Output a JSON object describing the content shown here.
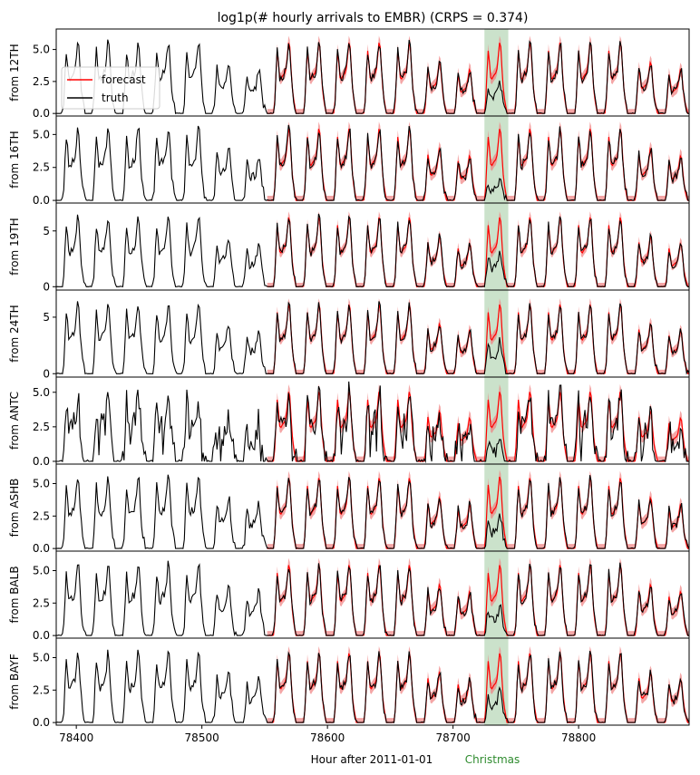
{
  "chart_data": {
    "type": "line",
    "title": "log1p(# hourly arrivals to EMBR) (CRPS = 0.374)",
    "xlabel": "Hour after 2011-01-01",
    "xlim": [
      78384,
      78888
    ],
    "x_ticks": [
      78400,
      78500,
      78600,
      78700,
      78800
    ],
    "forecast_start": 78552,
    "highlight": {
      "x_start": 78725,
      "x_end": 78744,
      "label": "Christmas",
      "color": "#2e8b2e"
    },
    "legend": {
      "placement": "upper-left",
      "panel": 0,
      "entries": [
        "forecast",
        "truth"
      ]
    },
    "colors": {
      "forecast": "#ff0000",
      "band": "#f08080",
      "truth": "#000000",
      "highlight": "#2e8b2e"
    },
    "panels": [
      {
        "ylabel": "from 12TH",
        "yticks": [
          "0.0",
          "2.5",
          "5.0"
        ],
        "ytick_values": [
          0,
          2.5,
          5
        ],
        "ylim": [
          -0.2,
          6.6
        ],
        "peak": 5.6,
        "variant": "smooth",
        "christmas_truth": 2.4,
        "christmas_forecast": 5.6,
        "seed": 11
      },
      {
        "ylabel": "from 16TH",
        "yticks": [
          "0.0",
          "2.5",
          "5.0"
        ],
        "ytick_values": [
          0,
          2.5,
          5
        ],
        "ylim": [
          -0.2,
          6.4
        ],
        "peak": 5.5,
        "variant": "smooth",
        "christmas_truth": 1.6,
        "christmas_forecast": 5.2,
        "seed": 23
      },
      {
        "ylabel": "from 19TH",
        "yticks": [
          "0",
          "5"
        ],
        "ytick_values": [
          0,
          5
        ],
        "ylim": [
          -0.3,
          7.5
        ],
        "peak": 6.3,
        "variant": "smooth",
        "christmas_truth": 3.2,
        "christmas_forecast": 6.0,
        "seed": 37
      },
      {
        "ylabel": "from 24TH",
        "yticks": [
          "0",
          "5"
        ],
        "ytick_values": [
          0,
          5
        ],
        "ylim": [
          -0.3,
          7.4
        ],
        "peak": 6.2,
        "variant": "smooth",
        "christmas_truth": 3.0,
        "christmas_forecast": 5.9,
        "seed": 41
      },
      {
        "ylabel": "from ANTC",
        "yticks": [
          "0.0",
          "2.5",
          "5.0"
        ],
        "ytick_values": [
          0,
          2.5,
          5
        ],
        "ylim": [
          -0.2,
          6.1
        ],
        "peak": 5.1,
        "variant": "spiky",
        "christmas_truth": 1.5,
        "christmas_forecast": 5.0,
        "seed": 53
      },
      {
        "ylabel": "from ASHB",
        "yticks": [
          "0.0",
          "2.5",
          "5.0"
        ],
        "ytick_values": [
          0,
          2.5,
          5
        ],
        "ylim": [
          -0.2,
          6.5
        ],
        "peak": 5.5,
        "variant": "smooth",
        "christmas_truth": 2.6,
        "christmas_forecast": 5.6,
        "seed": 67
      },
      {
        "ylabel": "from BALB",
        "yticks": [
          "0.0",
          "2.5",
          "5.0"
        ],
        "ytick_values": [
          0,
          2.5,
          5
        ],
        "ylim": [
          -0.2,
          6.5
        ],
        "peak": 5.5,
        "variant": "smooth",
        "christmas_truth": 2.3,
        "christmas_forecast": 5.0,
        "seed": 79
      },
      {
        "ylabel": "from BAYF",
        "yticks": [
          "0.0",
          "2.5",
          "5.0"
        ],
        "ytick_values": [
          0,
          2.5,
          5
        ],
        "ylim": [
          -0.2,
          6.5
        ],
        "peak": 5.4,
        "variant": "smooth",
        "christmas_truth": 2.5,
        "christmas_forecast": 5.2,
        "seed": 83
      }
    ]
  }
}
